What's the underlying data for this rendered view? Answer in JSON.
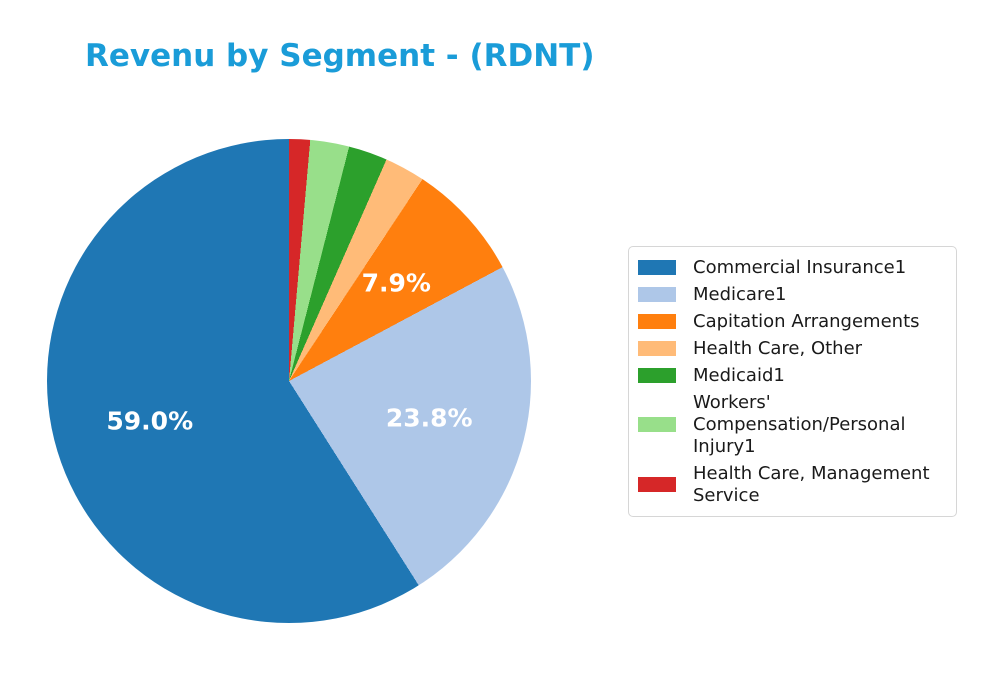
{
  "chart_data": {
    "type": "pie",
    "title": "Revenu by Segment - (RDNT)",
    "title_color": "#1a9cd8",
    "background": "#ffffff",
    "start_angle": 90,
    "counterclock": true,
    "legend_position": "right",
    "label_color": "#ffffff",
    "segments": [
      {
        "label": "Commercial Insurance1",
        "value": 59.0,
        "color": "#1f77b4",
        "pct_label": "59.0%"
      },
      {
        "label": "Medicare1",
        "value": 23.8,
        "color": "#aec7e8",
        "pct_label": "23.8%"
      },
      {
        "label": "Capitation Arrangements",
        "value": 7.9,
        "color": "#ff7f0e",
        "pct_label": "7.9%"
      },
      {
        "label": "Health Care, Other",
        "value": 2.7,
        "color": "#ffbb78",
        "pct_label": null
      },
      {
        "label": "Medicaid1",
        "value": 2.6,
        "color": "#2ca02c",
        "pct_label": null
      },
      {
        "label": "Workers' Compensation/Personal Injury1",
        "value": 2.6,
        "color": "#98df8a",
        "pct_label": null
      },
      {
        "label": "Health Care, Management Service",
        "value": 1.4,
        "color": "#d62728",
        "pct_label": null
      }
    ]
  }
}
